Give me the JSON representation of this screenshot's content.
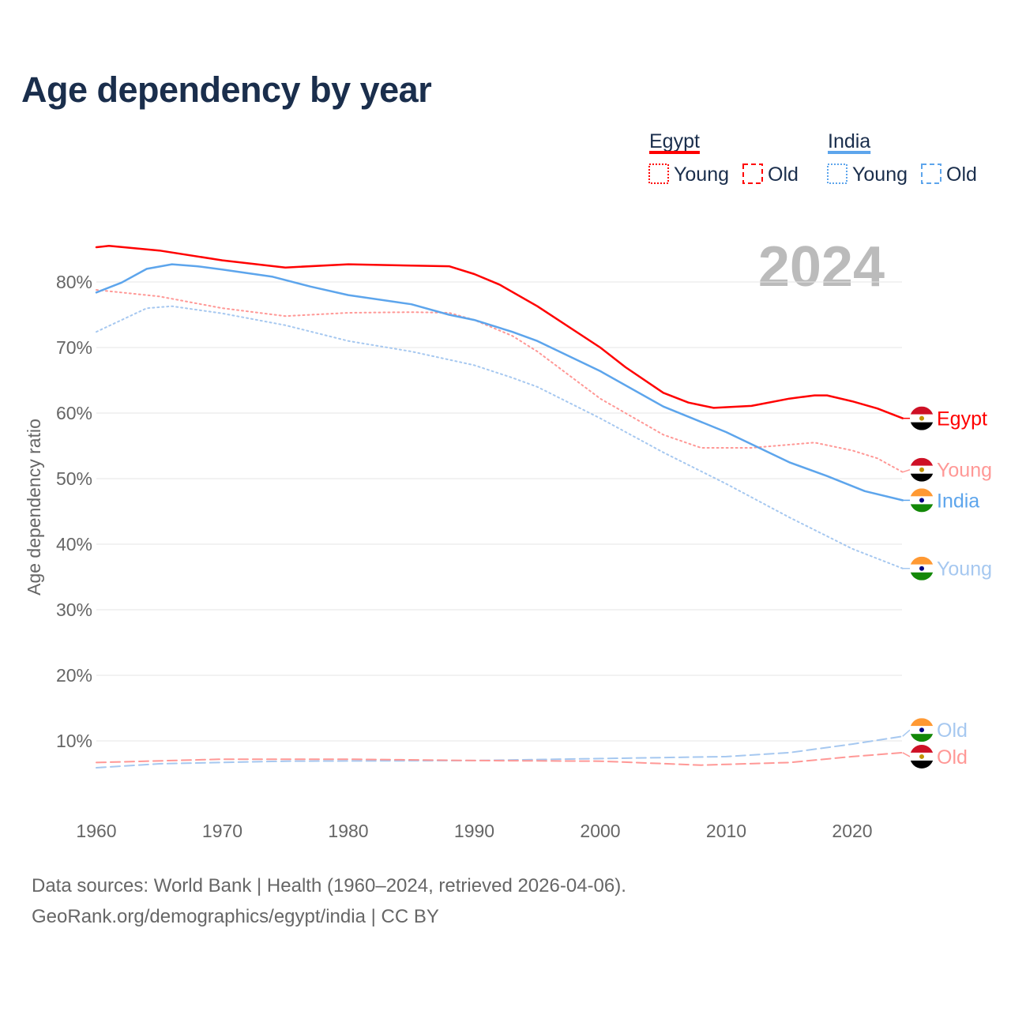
{
  "chart_data": {
    "type": "line",
    "title": "Age dependency by year",
    "ylabel": "Age dependency ratio",
    "xlabel": "",
    "year_watermark": "2024",
    "xlim": [
      1960,
      2024
    ],
    "ylim": [
      0,
      87
    ],
    "x_ticks": [
      "1960",
      "1970",
      "1980",
      "1990",
      "2000",
      "2010",
      "2020"
    ],
    "y_ticks": [
      "10%",
      "20%",
      "30%",
      "40%",
      "50%",
      "60%",
      "70%",
      "80%"
    ],
    "grid": true,
    "legend": {
      "placement": "top-right",
      "groups": [
        {
          "name": "Egypt",
          "items": [
            "Young",
            "Old"
          ]
        },
        {
          "name": "India",
          "items": [
            "Young",
            "Old"
          ]
        }
      ]
    },
    "series": [
      {
        "name": "Egypt",
        "label": "Egypt",
        "country": "egypt",
        "style": "solid",
        "color": "#ff0000",
        "labelColor": "#ff0000",
        "points": [
          [
            1960,
            85.3
          ],
          [
            1961,
            85.5
          ],
          [
            1965,
            84.8
          ],
          [
            1970,
            83.3
          ],
          [
            1975,
            82.2
          ],
          [
            1980,
            82.7
          ],
          [
            1985,
            82.5
          ],
          [
            1988,
            82.4
          ],
          [
            1990,
            81.2
          ],
          [
            1992,
            79.6
          ],
          [
            1995,
            76.3
          ],
          [
            2000,
            70.0
          ],
          [
            2002,
            67.0
          ],
          [
            2005,
            63.1
          ],
          [
            2007,
            61.6
          ],
          [
            2009,
            60.8
          ],
          [
            2012,
            61.1
          ],
          [
            2015,
            62.2
          ],
          [
            2017,
            62.7
          ],
          [
            2018,
            62.7
          ],
          [
            2020,
            61.8
          ],
          [
            2022,
            60.7
          ],
          [
            2024,
            59.2
          ]
        ]
      },
      {
        "name": "Egypt Young",
        "label": "Young",
        "country": "egypt",
        "style": "dotted",
        "color": "#ff9896",
        "labelColor": "#ff9896",
        "points": [
          [
            1960,
            78.8
          ],
          [
            1965,
            77.8
          ],
          [
            1970,
            76.0
          ],
          [
            1975,
            74.8
          ],
          [
            1980,
            75.3
          ],
          [
            1985,
            75.4
          ],
          [
            1988,
            75.3
          ],
          [
            1990,
            74.2
          ],
          [
            1993,
            71.8
          ],
          [
            1995,
            69.4
          ],
          [
            2000,
            62.2
          ],
          [
            2005,
            56.7
          ],
          [
            2008,
            54.7
          ],
          [
            2012,
            54.7
          ],
          [
            2017,
            55.5
          ],
          [
            2020,
            54.3
          ],
          [
            2022,
            53.1
          ],
          [
            2024,
            51.0
          ]
        ]
      },
      {
        "name": "India",
        "label": "India",
        "country": "india",
        "style": "solid",
        "color": "#5da5ec",
        "labelColor": "#5da5ec",
        "points": [
          [
            1960,
            78.4
          ],
          [
            1962,
            79.9
          ],
          [
            1964,
            82.0
          ],
          [
            1966,
            82.7
          ],
          [
            1968,
            82.4
          ],
          [
            1970,
            81.9
          ],
          [
            1974,
            80.8
          ],
          [
            1977,
            79.3
          ],
          [
            1980,
            78.0
          ],
          [
            1985,
            76.6
          ],
          [
            1988,
            75.0
          ],
          [
            1990,
            74.2
          ],
          [
            1993,
            72.4
          ],
          [
            1995,
            71.0
          ],
          [
            2000,
            66.4
          ],
          [
            2005,
            61.0
          ],
          [
            2010,
            57.1
          ],
          [
            2015,
            52.5
          ],
          [
            2018,
            50.4
          ],
          [
            2021,
            48.1
          ],
          [
            2024,
            46.7
          ]
        ]
      },
      {
        "name": "India Young",
        "label": "Young",
        "country": "india",
        "style": "dotted",
        "color": "#a6c8f0",
        "labelColor": "#a6c8f0",
        "points": [
          [
            1960,
            72.4
          ],
          [
            1964,
            76.0
          ],
          [
            1966,
            76.3
          ],
          [
            1970,
            75.2
          ],
          [
            1975,
            73.4
          ],
          [
            1980,
            71.0
          ],
          [
            1985,
            69.4
          ],
          [
            1990,
            67.3
          ],
          [
            1993,
            65.4
          ],
          [
            1995,
            64.0
          ],
          [
            2000,
            59.2
          ],
          [
            2005,
            54.0
          ],
          [
            2010,
            49.2
          ],
          [
            2015,
            44.1
          ],
          [
            2020,
            39.3
          ],
          [
            2024,
            36.3
          ]
        ]
      },
      {
        "name": "India Old",
        "label": "Old",
        "country": "india",
        "style": "dashed",
        "color": "#a6c8f0",
        "labelColor": "#a6c8f0",
        "points": [
          [
            1960,
            5.9
          ],
          [
            1965,
            6.5
          ],
          [
            1975,
            6.9
          ],
          [
            1990,
            7.0
          ],
          [
            2000,
            7.3
          ],
          [
            2010,
            7.6
          ],
          [
            2015,
            8.2
          ],
          [
            2020,
            9.5
          ],
          [
            2024,
            10.7
          ]
        ]
      },
      {
        "name": "Egypt Old",
        "label": "Old",
        "country": "egypt",
        "style": "dashed",
        "color": "#ff9896",
        "labelColor": "#ff9896",
        "points": [
          [
            1960,
            6.7
          ],
          [
            1970,
            7.2
          ],
          [
            1980,
            7.2
          ],
          [
            1990,
            7.0
          ],
          [
            2000,
            6.9
          ],
          [
            2008,
            6.3
          ],
          [
            2015,
            6.7
          ],
          [
            2020,
            7.6
          ],
          [
            2024,
            8.2
          ]
        ]
      }
    ]
  },
  "sources": {
    "line1": "Data sources: World Bank | Health (1960–2024, retrieved 2026-04-06).",
    "line2": "GeoRank.org/demographics/egypt/india | CC BY"
  },
  "colors": {
    "egypt": "#ff0000",
    "india": "#5da5ec",
    "text": "#1a2e4c",
    "axis": "#666666",
    "grid": "#e6e6e6"
  }
}
